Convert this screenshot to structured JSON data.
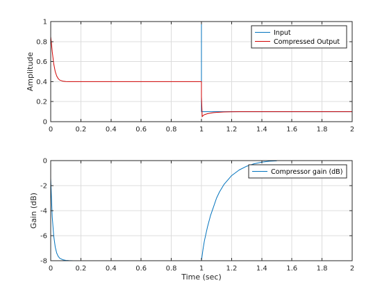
{
  "chart_data": [
    {
      "type": "line",
      "title": "",
      "xlabel": "",
      "ylabel": "Amplitude",
      "xlim": [
        0,
        2
      ],
      "ylim": [
        0,
        1
      ],
      "xticks": [
        "0",
        "0.2",
        "0.4",
        "0.6",
        "0.8",
        "1",
        "1.2",
        "1.4",
        "1.6",
        "1.8",
        "2"
      ],
      "yticks": [
        "0",
        "0.2",
        "0.4",
        "0.6",
        "0.8",
        "1"
      ],
      "grid": true,
      "legend": "top-right",
      "series": [
        {
          "name": "Input",
          "color": "#0072bd",
          "x": [
            0,
            1,
            1,
            1.3,
            1.3,
            2
          ],
          "y": [
            1,
            1,
            0.1,
            0.1,
            0.1,
            0.1
          ]
        },
        {
          "name": "Compressed Output",
          "color": "#d00000",
          "x": [
            0,
            0.005,
            0.01,
            0.02,
            0.03,
            0.04,
            0.05,
            0.06,
            0.08,
            0.1,
            0.12,
            0.15,
            0.2,
            1.0,
            1.0,
            1.005,
            1.01,
            1.02,
            1.04,
            1.06,
            1.08,
            1.1,
            1.15,
            1.2,
            1.25,
            1.3,
            2.0
          ],
          "y": [
            0.85,
            0.78,
            0.7,
            0.58,
            0.5,
            0.455,
            0.43,
            0.415,
            0.405,
            0.401,
            0.4,
            0.4,
            0.4,
            0.4,
            0.25,
            0.05,
            0.06,
            0.07,
            0.08,
            0.085,
            0.09,
            0.093,
            0.097,
            0.099,
            0.1,
            0.1,
            0.1
          ]
        }
      ]
    },
    {
      "type": "line",
      "title": "",
      "xlabel": "Time (sec)",
      "ylabel": "Gain (dB)",
      "xlim": [
        0,
        2
      ],
      "ylim": [
        -8,
        0
      ],
      "xticks": [
        "0",
        "0.2",
        "0.4",
        "0.6",
        "0.8",
        "1",
        "1.2",
        "1.4",
        "1.6",
        "1.8",
        "2"
      ],
      "yticks": [
        "-8",
        "-6",
        "-4",
        "-2",
        "0"
      ],
      "grid": true,
      "legend": "top-right",
      "series": [
        {
          "name": "Compressor gain (dB)",
          "color": "#0072bd",
          "x": [
            0,
            0.005,
            0.01,
            0.02,
            0.03,
            0.04,
            0.05,
            0.06,
            0.08,
            0.1,
            0.12,
            0.15,
            0.2,
            0.35,
            1.0,
            1.01,
            1.02,
            1.04,
            1.06,
            1.08,
            1.1,
            1.12,
            1.15,
            1.2,
            1.25,
            1.3,
            1.35,
            1.4,
            1.45,
            1.5
          ],
          "y": [
            -1.4,
            -3.0,
            -4.5,
            -6.0,
            -6.9,
            -7.4,
            -7.65,
            -7.8,
            -7.92,
            -7.97,
            -7.99,
            -8,
            -8,
            -8,
            -8,
            -7.1,
            -6.4,
            -5.3,
            -4.4,
            -3.7,
            -3.0,
            -2.5,
            -1.9,
            -1.2,
            -0.75,
            -0.45,
            -0.25,
            -0.12,
            -0.05,
            -0.02
          ]
        }
      ]
    }
  ]
}
